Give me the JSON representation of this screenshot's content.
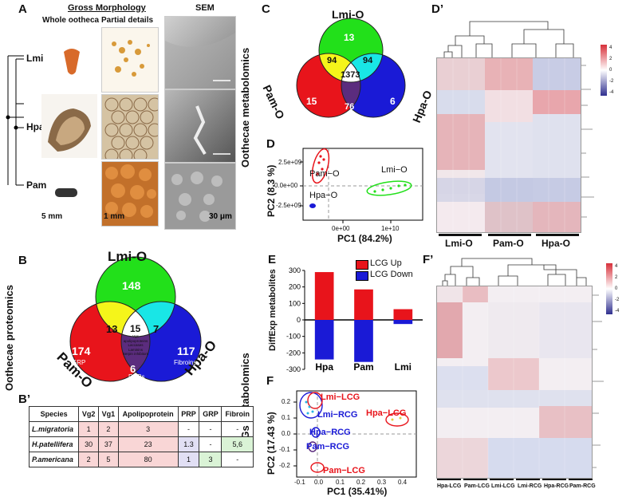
{
  "panels": {
    "A": "A",
    "B": "B",
    "Bp": "B’",
    "C": "C",
    "D": "D",
    "Dp": "D’",
    "E": "E",
    "F": "F",
    "Fp": "F’"
  },
  "section_titles": {
    "oothecae_metabolomics": "Oothecae metabolomics",
    "oothecae_proteomics": "Oothecae proteomics",
    "cgs_metabolomics": "CGs metabolomics"
  },
  "panelA": {
    "gross": "Gross Morphology",
    "whole": "Whole ootheca",
    "partial": "Partial details",
    "sem": "SEM",
    "species": [
      "Lmi",
      "Hpa",
      "Pam"
    ],
    "scale1": "5 mm",
    "scale2": "1 mm",
    "scale3": "30 μm"
  },
  "venn_proteome": {
    "labels": {
      "top": "Lmi-O",
      "left": "Pam-O",
      "right": "Hpa-O"
    },
    "values": {
      "lmi": "148",
      "pam": "174",
      "hpa": "117",
      "lmi_pam": "13",
      "lmi_hpa": "7",
      "pam_hpa": "6",
      "center": "15"
    },
    "center_terms": [
      "Vgs",
      "apolipoproteins",
      "Laccases",
      "Laminins",
      "Serpin inhibitors"
    ],
    "sublabels": {
      "pam": "GRP",
      "hpa": "Fibroins",
      "pam_hpa": "PRPs"
    }
  },
  "species_table": {
    "headers": [
      "Species",
      "Vg2",
      "Vg1",
      "Apolipoprotein",
      "PRP",
      "GRP",
      "Fibroin"
    ],
    "rows": [
      [
        "L.migratoria",
        "1",
        "2",
        "3",
        "-",
        "-",
        "-"
      ],
      [
        "H.patellifera",
        "30",
        "37",
        "23",
        "1.3",
        "-",
        "5,6"
      ],
      [
        "P.americana",
        "2",
        "5",
        "80",
        "1",
        "3",
        "-"
      ]
    ]
  },
  "venn_metab": {
    "labels": {
      "top": "Lmi-O",
      "left": "Pam-O",
      "right": "Hpa-O"
    },
    "values": {
      "lmi": "13",
      "pam": "15",
      "hpa": "6",
      "lmi_pam": "94",
      "lmi_hpa": "94",
      "pam_hpa": "76",
      "center": "1373"
    }
  },
  "pca_oothecae": {
    "xlabel": "PC1 (84.2%)",
    "ylabel": "PC2 (8.3 %)",
    "xticks": [
      "0e+00",
      "1e+10"
    ],
    "yticks": [
      "2.5e+09",
      "0.0e+00",
      "-2.5e+09"
    ],
    "groups": [
      "Pam−O",
      "Lmi−O",
      "Hpa−O"
    ]
  },
  "heatmap1": {
    "groups": [
      "Lmi-O",
      "Pam-O",
      "Hpa-O"
    ],
    "legend_ticks": [
      "4",
      "2",
      "0",
      "-2",
      "-4"
    ]
  },
  "chart_data": [
    {
      "type": "bar",
      "title": "",
      "ylabel": "DiffExp metabolites",
      "categories": [
        "Hpa",
        "Pam",
        "Lmi"
      ],
      "series": [
        {
          "name": "LCG Up",
          "values": [
            290,
            185,
            65
          ]
        },
        {
          "name": "LCG Down",
          "values": [
            -240,
            -255,
            -25
          ]
        }
      ],
      "ylim": [
        -300,
        300
      ],
      "yticks": [
        "300",
        "200",
        "100",
        "0",
        "-100",
        "-200",
        "-300"
      ],
      "colors": [
        "#e8141b",
        "#1a1ad6"
      ]
    }
  ],
  "pca_cgs": {
    "xlabel": "PC1 (35.41%)",
    "ylabel": "PC2 (17.43 %)",
    "xticks": [
      "-0.1",
      "0.0",
      "0.1",
      "0.2",
      "0.3",
      "0.4"
    ],
    "yticks": [
      "0.2",
      "0.1",
      "0.0",
      "-0.1",
      "-0.2"
    ],
    "groups": [
      "Lmi−LCG",
      "Lmi−RCG",
      "Hpa−LCG",
      "Hpa−RCG",
      "Pam−RCG",
      "Pam−LCG"
    ]
  },
  "heatmap2": {
    "groups": [
      "Hpa-LCG",
      "Pam-LCG",
      "Lmi-LCG",
      "Lmi-RCG",
      "Hpa-RCG",
      "Pam-RCG"
    ],
    "legend_ticks": [
      "4",
      "2",
      "0",
      "-2",
      "-4"
    ]
  },
  "colors": {
    "red": "#e8141b",
    "green": "#22e01a",
    "blue": "#1a1ad6",
    "yellow": "#f5f51a",
    "cyan": "#19e6e6",
    "purple": "#5b2c7e"
  }
}
